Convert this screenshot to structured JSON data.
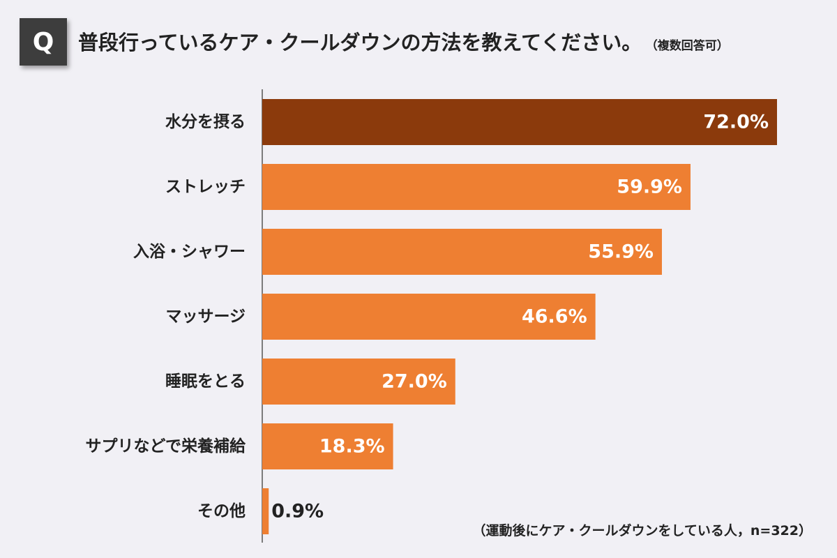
{
  "header": {
    "badge": "Q",
    "question": "普段行っているケア・クールダウンの方法を教えてください。",
    "note": "（複数回答可）"
  },
  "footnote": "（運動後にケア・クールダウンをしている人，n=322）",
  "colors": {
    "background": "#f1f0f5",
    "highlight_bar": "#8b3a0c",
    "bar": "#ee7f32",
    "axis": "#555555"
  },
  "chart_data": {
    "type": "bar",
    "orientation": "horizontal",
    "categories": [
      "水分を摂る",
      "ストレッチ",
      "入浴・シャワー",
      "マッサージ",
      "睡眠をとる",
      "サプリなどで栄養補給",
      "その他"
    ],
    "values": [
      72.0,
      59.9,
      55.9,
      46.6,
      27.0,
      18.3,
      0.9
    ],
    "value_labels": [
      "72.0%",
      "59.9%",
      "55.9%",
      "46.6%",
      "27.0%",
      "18.3%",
      "0.9%"
    ],
    "xlim": [
      0,
      80
    ],
    "grid": false,
    "legend": "none"
  }
}
